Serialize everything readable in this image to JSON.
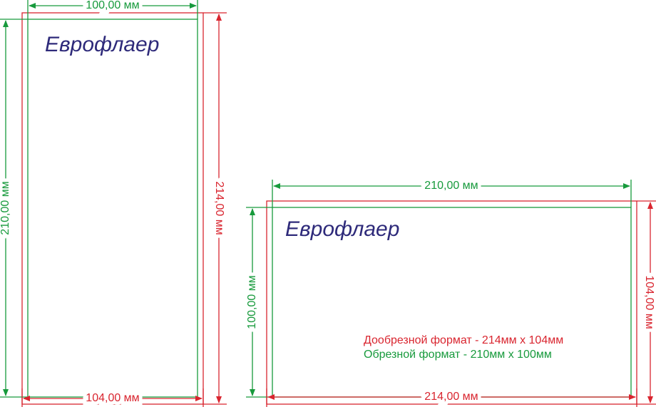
{
  "layouts": [
    {
      "title": "Еврофлаер",
      "trim_width": "100,00 мм",
      "trim_height": "210,00 мм",
      "bleed_width": "104,00 мм",
      "bleed_height": "214,00 мм"
    },
    {
      "title": "Еврофлаер",
      "trim_width": "210,00 мм",
      "trim_height": "100,00 мм",
      "bleed_width": "214,00 мм",
      "bleed_height": "104,00 мм"
    }
  ],
  "legend": {
    "bleed_format": "Дообрезной формат - 214мм x 104мм",
    "trim_format": "Обрезной формат - 210мм x 100мм"
  }
}
